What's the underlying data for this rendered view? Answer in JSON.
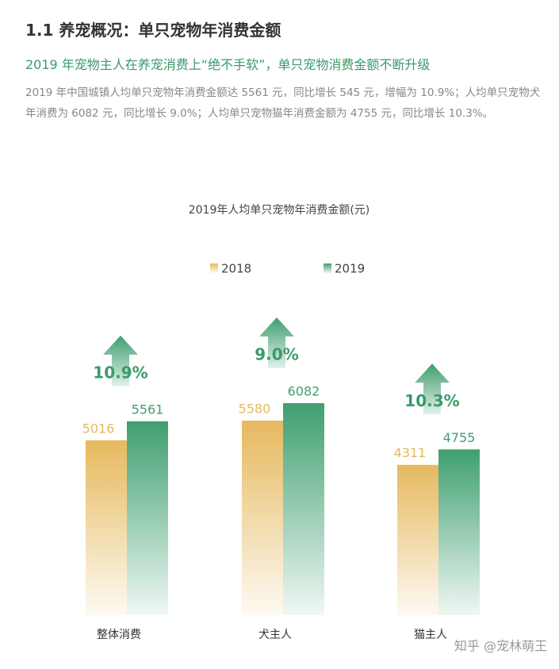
{
  "header": {
    "title": "1.1 养宠概况：单只宠物年消费金额",
    "subtitle": "2019 年宠物主人在养宠消费上“绝不手软”，单只宠物消费金额不断升级"
  },
  "paragraph": "2019 年中国城镇人均单只宠物年消费金额达 5561 元，同比增长 545 元，增幅为 10.9%；人均单只宠物犬年消费为 6082 元，同比增长 9.0%；人均单只宠物猫年消费金额为 4755 元，同比增长 10.3%。",
  "chart_data": {
    "type": "bar",
    "title": "2019年人均单只宠物年消费金额(元)",
    "categories": [
      "整体消费",
      "犬主人",
      "猫主人"
    ],
    "series": [
      {
        "name": "2018",
        "color": "#e6b95e",
        "values": [
          5016,
          5580,
          4311
        ]
      },
      {
        "name": "2019",
        "color": "#3f9f70",
        "values": [
          5561,
          6082,
          4755
        ]
      }
    ],
    "growth": {
      "values": [
        10.9,
        9.0,
        10.3
      ],
      "value_labels": [
        "10.9%",
        "9.0%",
        "10.3%"
      ],
      "color": "#3a9a6a"
    },
    "legend": "top"
  },
  "watermark": "知乎 @宠林萌王"
}
